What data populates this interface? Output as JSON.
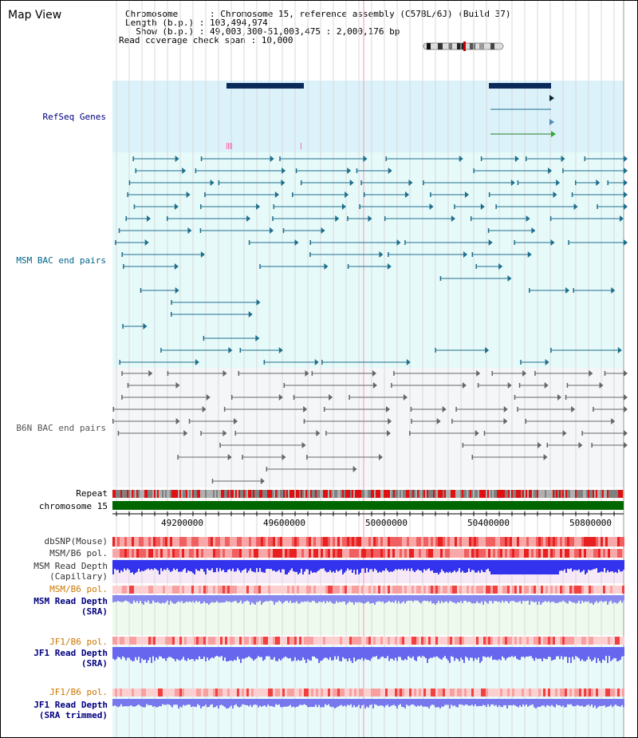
{
  "header": {
    "title": "Map View",
    "info_rows": [
      "Chromosome      : Chromosome 15, reference assembly (C57BL/6J) (Build 37)",
      "Length (b.p.) : 103,494,974",
      "  Show (b.p.) : 49,003,300-51,003,475 : 2,000,176 bp",
      "Read coverage check span : 10,000"
    ]
  },
  "tracks": {
    "refseq": "RefSeq Genes",
    "msm_bac": "MSM BAC end pairs",
    "b6n_bac": "B6N BAC end pairs",
    "repeat": "Repeat",
    "chromosome": "chromosome 15",
    "dbsnp": "dbSNP(Mouse)",
    "msm_b6_pol_1": "MSM/B6 pol.",
    "msm_depth_cap": "MSM Read Depth\n(Capillary)",
    "msm_b6_pol_2": "MSM/B6 pol.",
    "msm_depth_sra": "MSM Read Depth\n(SRA)",
    "jf1_b6_pol_1": "JF1/B6 pol.",
    "jf1_depth_sra": "JF1 Read Depth\n(SRA)",
    "jf1_b6_pol_2": "JF1/B6 pol.",
    "jf1_depth_trim": "JF1 Read Depth\n(SRA trimmed)"
  },
  "axis": {
    "ticks": [
      "49200000",
      "49600000",
      "50000000",
      "50400000",
      "50800000"
    ]
  },
  "colors": {
    "refseq_bg": "#dcf2fb",
    "msm_bg": "#e6fafa",
    "b6n_bg": "#f4f6f8",
    "msm_feature": "#1f6f8c",
    "b6n_feature": "#666666",
    "chromosome_bar": "#006600",
    "label_blue": "#000080",
    "label_orange": "#cc7700",
    "depth_blue": "#3333ee"
  }
}
